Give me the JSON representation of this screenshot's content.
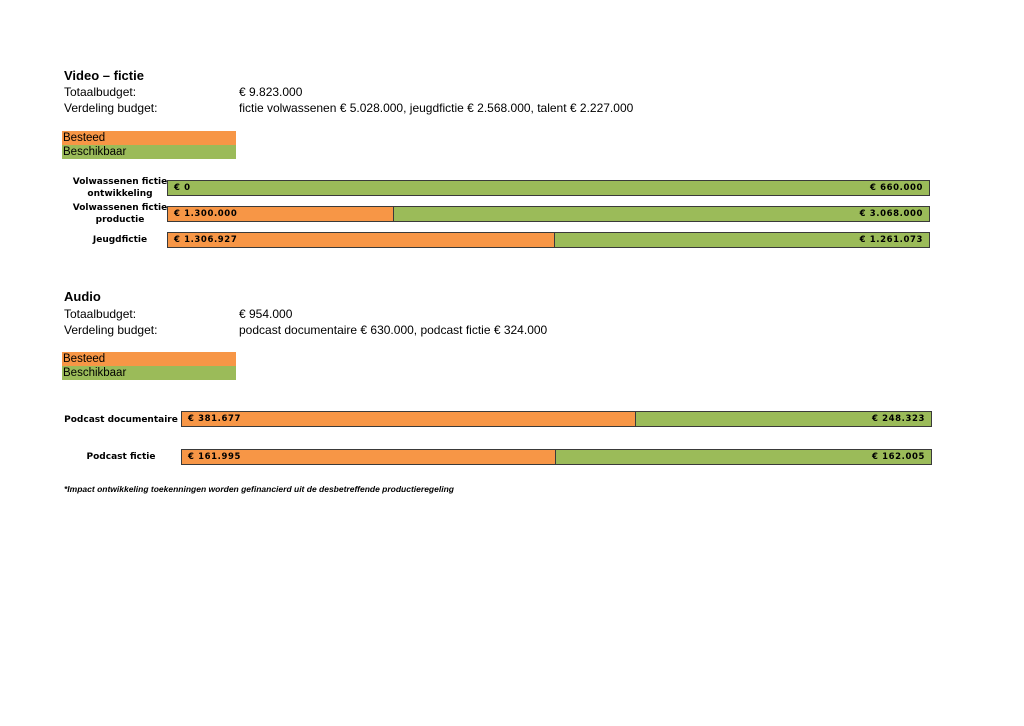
{
  "colors": {
    "spent": "#f79646",
    "available": "#9bbb59",
    "border": "#3a3a3a"
  },
  "legend": {
    "spent_label": "Besteed",
    "available_label": "Beschikbaar"
  },
  "video": {
    "title": "Video – fictie",
    "total_label": "Totaalbudget:",
    "total_value": "€ 9.823.000",
    "split_label": "Verdeling budget:",
    "split_value": "fictie volwassenen € 5.028.000, jeugdfictie € 2.568.000, talent € 2.227.000"
  },
  "audio": {
    "title": "Audio",
    "total_label": "Totaalbudget:",
    "total_value": "€ 954.000",
    "split_label": "Verdeling budget:",
    "split_value": "podcast documentaire € 630.000, podcast fictie € 324.000"
  },
  "chart_data": [
    {
      "type": "bar",
      "stacked": true,
      "orientation": "horizontal",
      "categories": [
        "Volwassenen fictie ontwikkeling",
        "Volwassenen fictie productie",
        "Jeugdfictie"
      ],
      "series": [
        {
          "name": "Besteed",
          "values": [
            0,
            1300000,
            1306927
          ],
          "labels": [
            "€ 0",
            "€ 1.300.000",
            "€ 1.306.927"
          ]
        },
        {
          "name": "Beschikbaar",
          "values": [
            660000,
            3068000,
            1261073
          ],
          "labels": [
            "€ 660.000",
            "€ 3.068.000",
            "€ 1.261.073"
          ]
        }
      ]
    },
    {
      "type": "bar",
      "stacked": true,
      "orientation": "horizontal",
      "categories": [
        "Podcast documentaire",
        "Podcast fictie"
      ],
      "series": [
        {
          "name": "Besteed",
          "values": [
            381677,
            161995
          ],
          "labels": [
            "€ 381.677",
            "€ 161.995"
          ]
        },
        {
          "name": "Beschikbaar",
          "values": [
            248323,
            162005
          ],
          "labels": [
            "€ 248.323",
            "€ 162.005"
          ]
        }
      ]
    }
  ],
  "footnote": "*Impact ontwikkeling toekenningen worden gefinancierd uit de desbetreffende productieregeling"
}
